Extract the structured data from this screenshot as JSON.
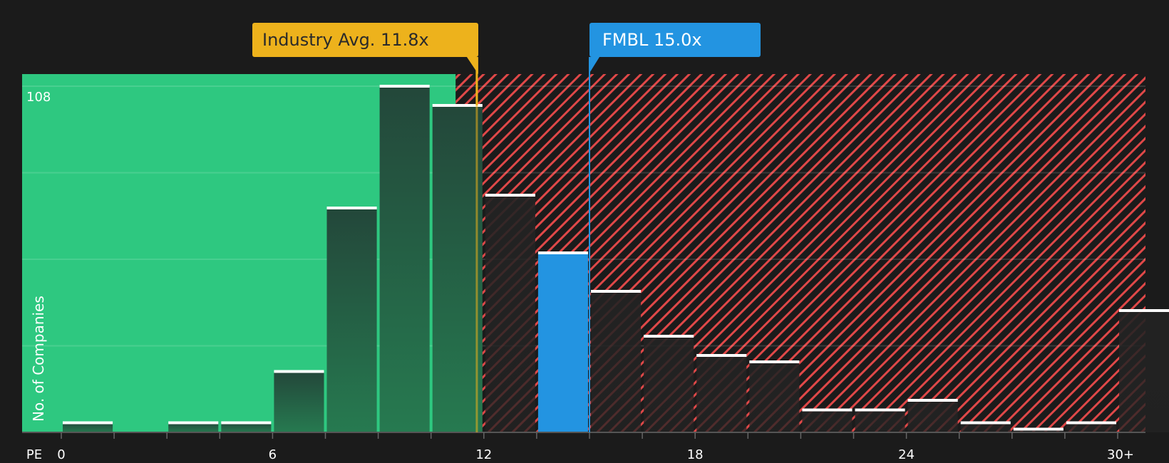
{
  "chart_data": {
    "type": "bar",
    "title": "",
    "xlabel": "PE",
    "ylabel": "No. of Companies",
    "ylim": [
      0,
      108
    ],
    "y_max_label": "108",
    "x_tick_labels": [
      "0",
      "6",
      "12",
      "18",
      "24",
      "30+"
    ],
    "bin_width": 1.5,
    "bins": [
      {
        "from": 0,
        "to": 1.5,
        "count": 3
      },
      {
        "from": 1.5,
        "to": 3,
        "count": 0
      },
      {
        "from": 3,
        "to": 4.5,
        "count": 3
      },
      {
        "from": 4.5,
        "to": 6,
        "count": 3
      },
      {
        "from": 6,
        "to": 7.5,
        "count": 19
      },
      {
        "from": 7.5,
        "to": 9,
        "count": 70
      },
      {
        "from": 9,
        "to": 10.5,
        "count": 108
      },
      {
        "from": 10.5,
        "to": 12,
        "count": 102
      },
      {
        "from": 12,
        "to": 13.5,
        "count": 74
      },
      {
        "from": 13.5,
        "to": 15,
        "count": 56,
        "highlight": true
      },
      {
        "from": 15,
        "to": 16.5,
        "count": 44
      },
      {
        "from": 16.5,
        "to": 18,
        "count": 30
      },
      {
        "from": 18,
        "to": 19.5,
        "count": 24
      },
      {
        "from": 19.5,
        "to": 21,
        "count": 22
      },
      {
        "from": 21,
        "to": 22.5,
        "count": 7
      },
      {
        "from": 22.5,
        "to": 24,
        "count": 7
      },
      {
        "from": 24,
        "to": 25.5,
        "count": 10
      },
      {
        "from": 25.5,
        "to": 27,
        "count": 3
      },
      {
        "from": 27,
        "to": 28.5,
        "count": 1
      },
      {
        "from": 28.5,
        "to": 30,
        "count": 3
      },
      {
        "from": 30,
        "to": 31.5,
        "count": 38,
        "label": "30+"
      }
    ],
    "annotations": [
      {
        "label": "Industry Avg. 11.8x",
        "value": 11.8,
        "color": "#edb21c"
      },
      {
        "label": "FMBL 15.0x",
        "value": 15.0,
        "color": "#2394e1"
      }
    ],
    "regions": {
      "undervalued_until": 11.2,
      "undervalued_color": "#2ec880",
      "overvalued_color": "#e04848"
    },
    "grid": true,
    "legend": "none"
  },
  "callouts": {
    "industry": "Industry Avg. 11.8x",
    "company": "FMBL 15.0x"
  },
  "axis": {
    "x_title": "PE",
    "y_title": "No. of Companies",
    "y_max": "108",
    "ticks": [
      "0",
      "6",
      "12",
      "18",
      "24",
      "30+"
    ]
  }
}
